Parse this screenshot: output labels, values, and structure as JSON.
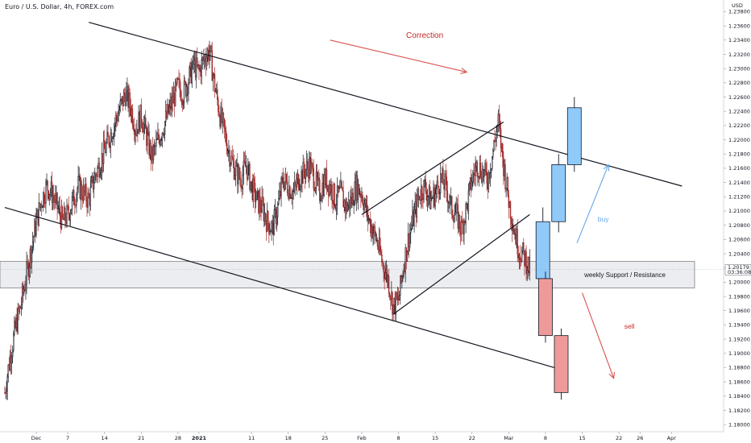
{
  "chart_data": {
    "type": "candlestick",
    "title": "Euro / U.S. Dollar, 4h, FOREX.com",
    "currency": "USD",
    "ylim": [
      1.179,
      1.2385
    ],
    "y_ticks": [
      1.18,
      1.182,
      1.184,
      1.186,
      1.188,
      1.19,
      1.192,
      1.194,
      1.196,
      1.198,
      1.2,
      1.202,
      1.204,
      1.206,
      1.208,
      1.21,
      1.212,
      1.214,
      1.216,
      1.218,
      1.22,
      1.222,
      1.224,
      1.226,
      1.228,
      1.23,
      1.232,
      1.234,
      1.236,
      1.238
    ],
    "y_tick_labels": [
      "1.18000",
      "1.18200",
      "1.18400",
      "1.18600",
      "1.18800",
      "1.19000",
      "1.19200",
      "1.19400",
      "1.19600",
      "1.19800",
      "1.20000",
      "1.20200",
      "1.20400",
      "1.20600",
      "1.20800",
      "1.21000",
      "1.21200",
      "1.21400",
      "1.21600",
      "1.21800",
      "1.22000",
      "1.22200",
      "1.22400",
      "1.22600",
      "1.22800",
      "1.23000",
      "1.23200",
      "1.23400",
      "1.23600",
      "1.23800"
    ],
    "x_ticks": [
      {
        "label": "Dec",
        "t": 0
      },
      {
        "label": "7",
        "t": 6
      },
      {
        "label": "14",
        "t": 13
      },
      {
        "label": "21",
        "t": 20
      },
      {
        "label": "28",
        "t": 27
      },
      {
        "label": "2021",
        "t": 31
      },
      {
        "label": "11",
        "t": 41
      },
      {
        "label": "18",
        "t": 48
      },
      {
        "label": "25",
        "t": 55
      },
      {
        "label": "Feb",
        "t": 62
      },
      {
        "label": "8",
        "t": 69
      },
      {
        "label": "15",
        "t": 76
      },
      {
        "label": "22",
        "t": 83
      },
      {
        "label": "Mar",
        "t": 90
      },
      {
        "label": "8",
        "t": 97
      },
      {
        "label": "15",
        "t": 104
      },
      {
        "label": "22",
        "t": 111
      },
      {
        "label": "26",
        "t": 115
      },
      {
        "label": "Apr",
        "t": 121
      }
    ],
    "price_marker": {
      "value": 1.20179,
      "label": "1.20179",
      "countdown": "03:36:08"
    },
    "support_zone": {
      "low": 1.1992,
      "high": 1.2029,
      "label": "weekly Support / Resistance"
    },
    "price_path": [
      [
        -6,
        1.1845
      ],
      [
        -5,
        1.1895
      ],
      [
        -4,
        1.1935
      ],
      [
        -3,
        1.1965
      ],
      [
        -2,
        1.2005
      ],
      [
        -1,
        1.2045
      ],
      [
        0,
        1.2085
      ],
      [
        1,
        1.2115
      ],
      [
        2,
        1.2135
      ],
      [
        3,
        1.2125
      ],
      [
        4,
        1.2105
      ],
      [
        5,
        1.2085
      ],
      [
        6,
        1.2095
      ],
      [
        7,
        1.2115
      ],
      [
        8,
        1.2135
      ],
      [
        9,
        1.2125
      ],
      [
        10,
        1.2115
      ],
      [
        11,
        1.2145
      ],
      [
        12,
        1.2165
      ],
      [
        13,
        1.2185
      ],
      [
        14,
        1.2205
      ],
      [
        15,
        1.2225
      ],
      [
        16,
        1.2245
      ],
      [
        17,
        1.2265
      ],
      [
        18,
        1.2245
      ],
      [
        19,
        1.2215
      ],
      [
        20,
        1.2235
      ],
      [
        21,
        1.2205
      ],
      [
        22,
        1.2175
      ],
      [
        23,
        1.2195
      ],
      [
        24,
        1.2215
      ],
      [
        25,
        1.2235
      ],
      [
        26,
        1.2255
      ],
      [
        27,
        1.2275
      ],
      [
        28,
        1.2265
      ],
      [
        29,
        1.2285
      ],
      [
        30,
        1.2305
      ],
      [
        31,
        1.2295
      ],
      [
        32,
        1.2315
      ],
      [
        33,
        1.2325
      ],
      [
        34,
        1.2275
      ],
      [
        35,
        1.2235
      ],
      [
        36,
        1.2205
      ],
      [
        37,
        1.2175
      ],
      [
        38,
        1.2155
      ],
      [
        39,
        1.2145
      ],
      [
        40,
        1.2165
      ],
      [
        41,
        1.2135
      ],
      [
        42,
        1.2115
      ],
      [
        43,
        1.2105
      ],
      [
        44,
        1.2085
      ],
      [
        45,
        1.2075
      ],
      [
        46,
        1.2105
      ],
      [
        47,
        1.2145
      ],
      [
        48,
        1.2135
      ],
      [
        49,
        1.2125
      ],
      [
        50,
        1.2145
      ],
      [
        51,
        1.2155
      ],
      [
        52,
        1.2165
      ],
      [
        53,
        1.2145
      ],
      [
        54,
        1.2125
      ],
      [
        55,
        1.2145
      ],
      [
        56,
        1.2135
      ],
      [
        57,
        1.2115
      ],
      [
        58,
        1.2125
      ],
      [
        59,
        1.2105
      ],
      [
        60,
        1.2115
      ],
      [
        61,
        1.2135
      ],
      [
        62,
        1.2125
      ],
      [
        63,
        1.2095
      ],
      [
        64,
        1.2075
      ],
      [
        65,
        1.2055
      ],
      [
        66,
        1.2025
      ],
      [
        67,
        1.2005
      ],
      [
        68,
        1.1965
      ],
      [
        69,
        1.1975
      ],
      [
        70,
        1.2025
      ],
      [
        71,
        1.2065
      ],
      [
        72,
        1.2095
      ],
      [
        73,
        1.2125
      ],
      [
        74,
        1.2135
      ],
      [
        75,
        1.2115
      ],
      [
        76,
        1.2125
      ],
      [
        77,
        1.2145
      ],
      [
        78,
        1.2135
      ],
      [
        79,
        1.2105
      ],
      [
        80,
        1.2095
      ],
      [
        81,
        1.2075
      ],
      [
        82,
        1.2105
      ],
      [
        83,
        1.2145
      ],
      [
        84,
        1.2165
      ],
      [
        85,
        1.2155
      ],
      [
        86,
        1.2145
      ],
      [
        87,
        1.2185
      ],
      [
        88,
        1.2225
      ],
      [
        89,
        1.2165
      ],
      [
        90,
        1.2115
      ],
      [
        91,
        1.2075
      ],
      [
        92,
        1.2045
      ],
      [
        93,
        1.2035
      ],
      [
        94,
        1.2018
      ]
    ],
    "projection_candles": [
      {
        "t": 96.5,
        "open": 1.2005,
        "close": 1.2085,
        "high": 1.2105,
        "low": 1.1998,
        "color": "#90caf9"
      },
      {
        "t": 99.5,
        "open": 1.2085,
        "close": 1.2165,
        "high": 1.218,
        "low": 1.207,
        "color": "#90caf9"
      },
      {
        "t": 102.5,
        "open": 1.2165,
        "close": 1.2245,
        "high": 1.226,
        "low": 1.2155,
        "color": "#90caf9"
      },
      {
        "t": 97,
        "open": 1.2005,
        "close": 1.1925,
        "high": 1.2015,
        "low": 1.1915,
        "color": "#ef9a9a"
      },
      {
        "t": 100,
        "open": 1.1925,
        "close": 1.1845,
        "high": 1.1935,
        "low": 1.1835,
        "color": "#ef9a9a"
      }
    ],
    "trendlines": [
      {
        "name": "upper channel",
        "t1": 10,
        "v1": 1.2365,
        "t2": 123,
        "v2": 1.2135,
        "color": "#131722"
      },
      {
        "name": "lower channel",
        "t1": -6,
        "v1": 1.2105,
        "t2": 101,
        "v2": 1.1875,
        "color": "#131722"
      },
      {
        "name": "rising wedge lower",
        "t1": 68,
        "v1": 1.1955,
        "t2": 94,
        "v2": 1.2095,
        "color": "#131722"
      },
      {
        "name": "rising wedge upper",
        "t1": 62,
        "v1": 1.2095,
        "t2": 89,
        "v2": 1.2225,
        "color": "#131722"
      }
    ],
    "annotations": [
      {
        "text": "Correction",
        "color": "#c62828",
        "t": 74,
        "v": 1.2343
      },
      {
        "text": "buy",
        "color": "#64a8e8",
        "t": 108,
        "v": 1.2085
      },
      {
        "text": "sell",
        "color": "#c62828",
        "t": 113,
        "v": 1.1935
      }
    ],
    "arrows": [
      {
        "name": "correction-arrow",
        "t1": 56,
        "v1": 1.234,
        "t2": 82,
        "v2": 1.2295,
        "color": "#d9534f"
      },
      {
        "name": "buy-arrow",
        "t1": 103,
        "v1": 1.2055,
        "t2": 109,
        "v2": 1.2165,
        "color": "#64a8e8"
      },
      {
        "name": "sell-arrow",
        "t1": 104,
        "v1": 1.1985,
        "t2": 110,
        "v2": 1.1865,
        "color": "#d9534f"
      }
    ]
  }
}
